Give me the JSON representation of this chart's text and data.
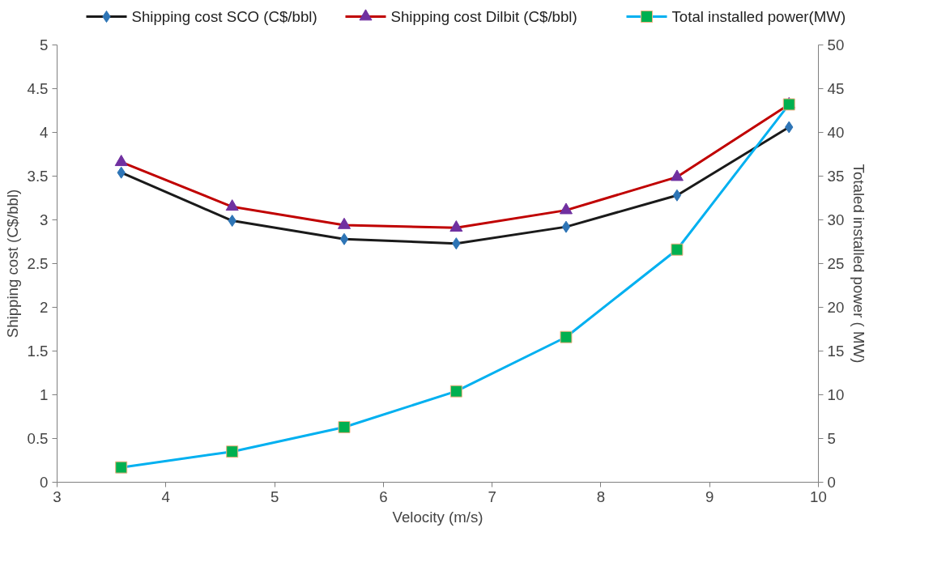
{
  "chart_data": {
    "type": "line",
    "xlabel": "Velocity (m/s)",
    "ylabel": "Shipping cost (C$/bbl)",
    "y2label": "Totaled installed power ( MW)",
    "x": [
      3.59,
      4.61,
      5.64,
      6.67,
      7.68,
      8.7,
      9.73
    ],
    "series": [
      {
        "name": "Shipping cost SCO (C$/bbl)",
        "color": "#1a1a1a",
        "colors": [
          "#2e75b6",
          "#2e75b6",
          "#2e75b6",
          "#2e75b6",
          "#2e75b6",
          "#2e75b6",
          "#2e75b6"
        ],
        "marker": "diamond",
        "values": [
          3.54,
          2.99,
          2.78,
          2.73,
          2.92,
          3.28,
          4.06
        ]
      },
      {
        "name": "Shipping cost Dilbit (C$/bbl)",
        "color": "#c00000",
        "colors": [
          "#7030a0",
          "#7030a0",
          "#7030a0",
          "#7030a0",
          "#7030a0",
          "#7030a0",
          "#7030a0"
        ],
        "marker": "triangle",
        "values": [
          3.66,
          3.15,
          2.94,
          2.91,
          3.11,
          3.49,
          4.32
        ]
      },
      {
        "name": "Total installed power(MW)",
        "color": "#00b0f0",
        "colors": [
          "#00b050",
          "#00b050",
          "#00b050",
          "#00b050",
          "#00b050",
          "#00b050",
          "#00b050"
        ],
        "marker": "square",
        "axis": "y2",
        "values": [
          1.7,
          3.5,
          6.3,
          10.4,
          16.6,
          26.6,
          43.2
        ]
      }
    ],
    "xlim": [
      3,
      10
    ],
    "xticks": [
      3,
      4,
      5,
      6,
      7,
      8,
      9,
      10
    ],
    "ylim": [
      0,
      5
    ],
    "yticks": [
      0,
      0.5,
      1,
      1.5,
      2,
      2.5,
      3,
      3.5,
      4,
      4.5,
      5
    ],
    "y2lim": [
      0,
      50
    ],
    "y2ticks": [
      0,
      5,
      10,
      15,
      20,
      25,
      30,
      35,
      40,
      45,
      50
    ],
    "grid": false,
    "legend": "top"
  }
}
